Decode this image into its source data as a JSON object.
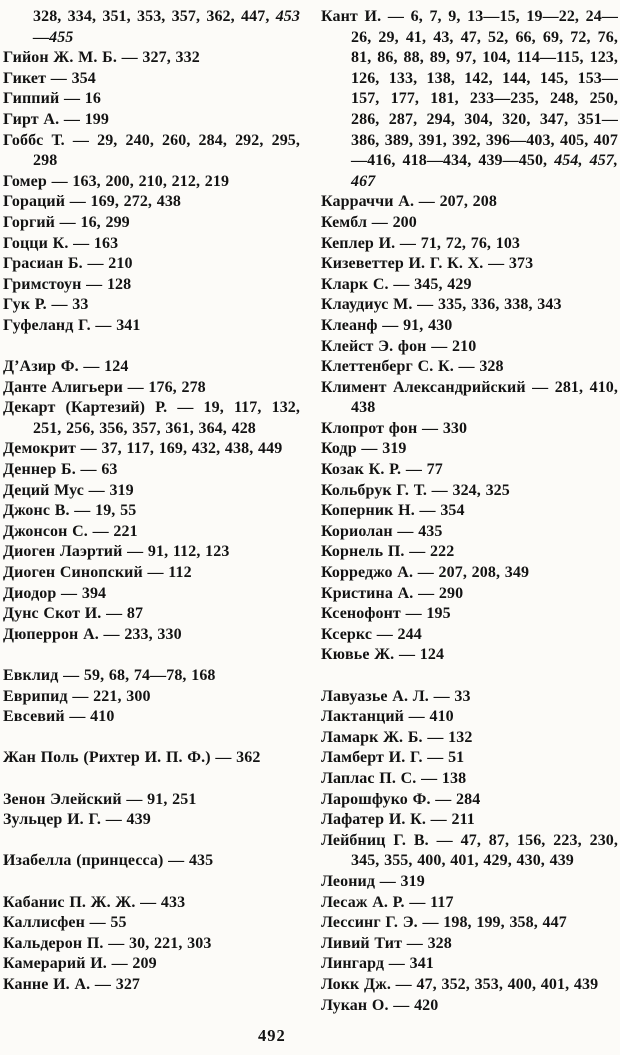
{
  "document": {
    "type": "book-index-page",
    "language": "ru",
    "page_number": "492",
    "paper_color": "#fcfbf8",
    "text_color": "#131313"
  },
  "columns": {
    "left": {
      "entries": [
        {
          "continuation": true,
          "text": "328, 334, 351, 353, 357, 362, 447, ",
          "italic": "453—455"
        },
        {
          "text": "Гийон Ж. М. Б. — 327, 332"
        },
        {
          "text": "Гикет — 354"
        },
        {
          "text": "Гиппий — 16"
        },
        {
          "text": "Гирт А. — 199"
        },
        {
          "text": "Гоббс Т. — 29, 240, 260, 284, 292, 295, 298"
        },
        {
          "text": "Гомер — 163, 200, 210, 212, 219"
        },
        {
          "text": "Гораций — 169, 272, 438"
        },
        {
          "text": "Горгий — 16, 299"
        },
        {
          "text": "Гоцци К. — 163"
        },
        {
          "text": "Грасиан Б. — 210"
        },
        {
          "text": "Гримстоун — 128"
        },
        {
          "text": "Гук Р. — 33"
        },
        {
          "text": "Гуфеланд Г. — 341"
        },
        {
          "gap": true,
          "text": "Д’Азир Ф. — 124"
        },
        {
          "text": "Данте Алигьери — 176, 278"
        },
        {
          "text": "Декарт (Картезий) Р. — 19, 117, 132, 251, 256, 356, 357, 361, 364, 428"
        },
        {
          "text": "Демокрит — 37, 117, 169, 432, 438, 449"
        },
        {
          "text": "Деннер Б. — 63"
        },
        {
          "text": "Деций Мус — 319"
        },
        {
          "text": "Джонс В. — 19, 55"
        },
        {
          "text": "Джонсон С. — 221"
        },
        {
          "text": "Диоген Лаэртий — 91, 112, 123"
        },
        {
          "text": "Диоген Синопский — 112"
        },
        {
          "text": "Диодор — 394"
        },
        {
          "text": "Дунс Скот И. — 87"
        },
        {
          "text": "Дюперрон А. — 233, 330"
        },
        {
          "gap": true,
          "text": "Евклид — 59, 68, 74—78, 168"
        },
        {
          "text": "Еврипид — 221, 300"
        },
        {
          "text": "Евсевий — 410"
        },
        {
          "gap": true,
          "text": "Жан Поль (Рихтер И. П. Ф.) — 362"
        },
        {
          "gap": true,
          "text": "Зенон Элейский — 91, 251"
        },
        {
          "text": "Зульцер И. Г. — 439"
        },
        {
          "gap": true,
          "text": "Изабелла (принцесса) — 435"
        },
        {
          "gap": true,
          "text": "Кабанис П. Ж. Ж. — 433"
        },
        {
          "text": "Каллисфен — 55"
        },
        {
          "text": "Кальдерон П. — 30, 221, 303"
        },
        {
          "text": "Камерарий И. — 209"
        },
        {
          "text": "Канне И. А. — 327"
        }
      ]
    },
    "right": {
      "entries": [
        {
          "text": "Кант И. — 6, 7, 9, 13—15, 19—22, 24—26, 29, 41, 43, 47, 52, 66, 69, 72, 76, 81, 86, 88, 89, 97, 104, 114—115, 123, 126, 133, 138, 142, 144, 145, 153—157, 177, 181, 233—235, 248, 250, 286, 287, 294, 304, 320, 347, 351—386, 389, 391, 392, 396—403, 405, 407—416, 418—434, 439—450, ",
          "italic": "454, 457, 467"
        },
        {
          "text": "Карраччи А. — 207, 208"
        },
        {
          "text": "Кембл — 200"
        },
        {
          "text": "Кеплер И. — 71, 72, 76, 103"
        },
        {
          "text": "Кизеветтер И. Г. К. Х. — 373"
        },
        {
          "text": "Кларк С. — 345, 429"
        },
        {
          "text": "Клаудиус М. — 335, 336, 338, 343"
        },
        {
          "text": "Клеанф — 91, 430"
        },
        {
          "text": "Клейст Э. фон — 210"
        },
        {
          "text": "Клеттенберг С. К. — 328"
        },
        {
          "text": "Климент Александрийский — 281, 410, 438"
        },
        {
          "text": "Клопрот фон — 330"
        },
        {
          "text": "Кодр — 319"
        },
        {
          "text": "Козак К. Р. — 77"
        },
        {
          "text": "Кольбрук Г. Т. — 324, 325"
        },
        {
          "text": "Коперник Н. — 354"
        },
        {
          "text": "Кориолан — 435"
        },
        {
          "text": "Корнель П. — 222"
        },
        {
          "text": "Корреджо А. — 207, 208, 349"
        },
        {
          "text": "Кристина А. — 290"
        },
        {
          "text": "Ксенофонт — 195"
        },
        {
          "text": "Ксеркс — 244"
        },
        {
          "text": "Кювье Ж. — 124"
        },
        {
          "gap": true,
          "text": "Лавуазье А. Л. — 33"
        },
        {
          "text": "Лактанций — 410"
        },
        {
          "text": "Ламарк Ж. Б. — 132"
        },
        {
          "text": "Ламберт И. Г. — 51"
        },
        {
          "text": "Лаплас П. С. — 138"
        },
        {
          "text": "Ларошфуко Ф. — 284"
        },
        {
          "text": "Лафатер И. К. — 211"
        },
        {
          "text": "Лейбниц Г. В. — 47, 87, 156, 223, 230, 345, 355, 400, 401, 429, 430, 439"
        },
        {
          "text": "Леонид — 319"
        },
        {
          "text": "Лесаж А. Р. — 117"
        },
        {
          "text": "Лессинг Г. Э. — 198, 199, 358, 447"
        },
        {
          "text": "Ливий Тит — 328"
        },
        {
          "text": "Лингард — 341"
        },
        {
          "text": "Локк Дж. — 47, 352, 353, 400, 401, 439"
        },
        {
          "text": "Лукан О. — 420"
        }
      ]
    }
  }
}
